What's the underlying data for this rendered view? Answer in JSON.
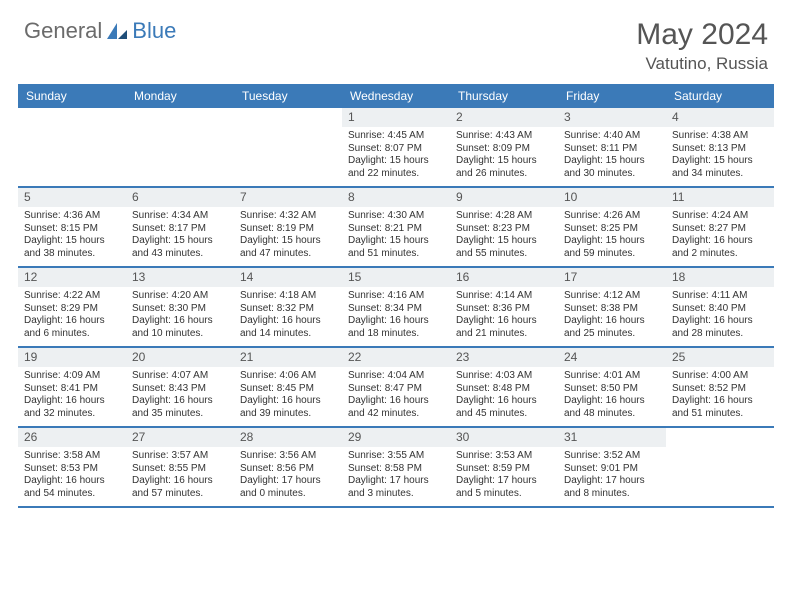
{
  "brand": {
    "general": "General",
    "blue": "Blue"
  },
  "title": "May 2024",
  "location": "Vatutino, Russia",
  "colors": {
    "accent": "#3b7ab8",
    "headerText": "#555555",
    "cellBg": "#edf0f2"
  },
  "dayNames": [
    "Sunday",
    "Monday",
    "Tuesday",
    "Wednesday",
    "Thursday",
    "Friday",
    "Saturday"
  ],
  "weeks": [
    [
      {
        "blank": true
      },
      {
        "blank": true
      },
      {
        "blank": true
      },
      {
        "n": "1",
        "rise": "4:45 AM",
        "set": "8:07 PM",
        "dl": "15 hours and 22 minutes."
      },
      {
        "n": "2",
        "rise": "4:43 AM",
        "set": "8:09 PM",
        "dl": "15 hours and 26 minutes."
      },
      {
        "n": "3",
        "rise": "4:40 AM",
        "set": "8:11 PM",
        "dl": "15 hours and 30 minutes."
      },
      {
        "n": "4",
        "rise": "4:38 AM",
        "set": "8:13 PM",
        "dl": "15 hours and 34 minutes."
      }
    ],
    [
      {
        "n": "5",
        "rise": "4:36 AM",
        "set": "8:15 PM",
        "dl": "15 hours and 38 minutes."
      },
      {
        "n": "6",
        "rise": "4:34 AM",
        "set": "8:17 PM",
        "dl": "15 hours and 43 minutes."
      },
      {
        "n": "7",
        "rise": "4:32 AM",
        "set": "8:19 PM",
        "dl": "15 hours and 47 minutes."
      },
      {
        "n": "8",
        "rise": "4:30 AM",
        "set": "8:21 PM",
        "dl": "15 hours and 51 minutes."
      },
      {
        "n": "9",
        "rise": "4:28 AM",
        "set": "8:23 PM",
        "dl": "15 hours and 55 minutes."
      },
      {
        "n": "10",
        "rise": "4:26 AM",
        "set": "8:25 PM",
        "dl": "15 hours and 59 minutes."
      },
      {
        "n": "11",
        "rise": "4:24 AM",
        "set": "8:27 PM",
        "dl": "16 hours and 2 minutes."
      }
    ],
    [
      {
        "n": "12",
        "rise": "4:22 AM",
        "set": "8:29 PM",
        "dl": "16 hours and 6 minutes."
      },
      {
        "n": "13",
        "rise": "4:20 AM",
        "set": "8:30 PM",
        "dl": "16 hours and 10 minutes."
      },
      {
        "n": "14",
        "rise": "4:18 AM",
        "set": "8:32 PM",
        "dl": "16 hours and 14 minutes."
      },
      {
        "n": "15",
        "rise": "4:16 AM",
        "set": "8:34 PM",
        "dl": "16 hours and 18 minutes."
      },
      {
        "n": "16",
        "rise": "4:14 AM",
        "set": "8:36 PM",
        "dl": "16 hours and 21 minutes."
      },
      {
        "n": "17",
        "rise": "4:12 AM",
        "set": "8:38 PM",
        "dl": "16 hours and 25 minutes."
      },
      {
        "n": "18",
        "rise": "4:11 AM",
        "set": "8:40 PM",
        "dl": "16 hours and 28 minutes."
      }
    ],
    [
      {
        "n": "19",
        "rise": "4:09 AM",
        "set": "8:41 PM",
        "dl": "16 hours and 32 minutes."
      },
      {
        "n": "20",
        "rise": "4:07 AM",
        "set": "8:43 PM",
        "dl": "16 hours and 35 minutes."
      },
      {
        "n": "21",
        "rise": "4:06 AM",
        "set": "8:45 PM",
        "dl": "16 hours and 39 minutes."
      },
      {
        "n": "22",
        "rise": "4:04 AM",
        "set": "8:47 PM",
        "dl": "16 hours and 42 minutes."
      },
      {
        "n": "23",
        "rise": "4:03 AM",
        "set": "8:48 PM",
        "dl": "16 hours and 45 minutes."
      },
      {
        "n": "24",
        "rise": "4:01 AM",
        "set": "8:50 PM",
        "dl": "16 hours and 48 minutes."
      },
      {
        "n": "25",
        "rise": "4:00 AM",
        "set": "8:52 PM",
        "dl": "16 hours and 51 minutes."
      }
    ],
    [
      {
        "n": "26",
        "rise": "3:58 AM",
        "set": "8:53 PM",
        "dl": "16 hours and 54 minutes."
      },
      {
        "n": "27",
        "rise": "3:57 AM",
        "set": "8:55 PM",
        "dl": "16 hours and 57 minutes."
      },
      {
        "n": "28",
        "rise": "3:56 AM",
        "set": "8:56 PM",
        "dl": "17 hours and 0 minutes."
      },
      {
        "n": "29",
        "rise": "3:55 AM",
        "set": "8:58 PM",
        "dl": "17 hours and 3 minutes."
      },
      {
        "n": "30",
        "rise": "3:53 AM",
        "set": "8:59 PM",
        "dl": "17 hours and 5 minutes."
      },
      {
        "n": "31",
        "rise": "3:52 AM",
        "set": "9:01 PM",
        "dl": "17 hours and 8 minutes."
      },
      {
        "blank": true
      }
    ]
  ],
  "labels": {
    "sunrise": "Sunrise:",
    "sunset": "Sunset:",
    "daylight": "Daylight:"
  }
}
